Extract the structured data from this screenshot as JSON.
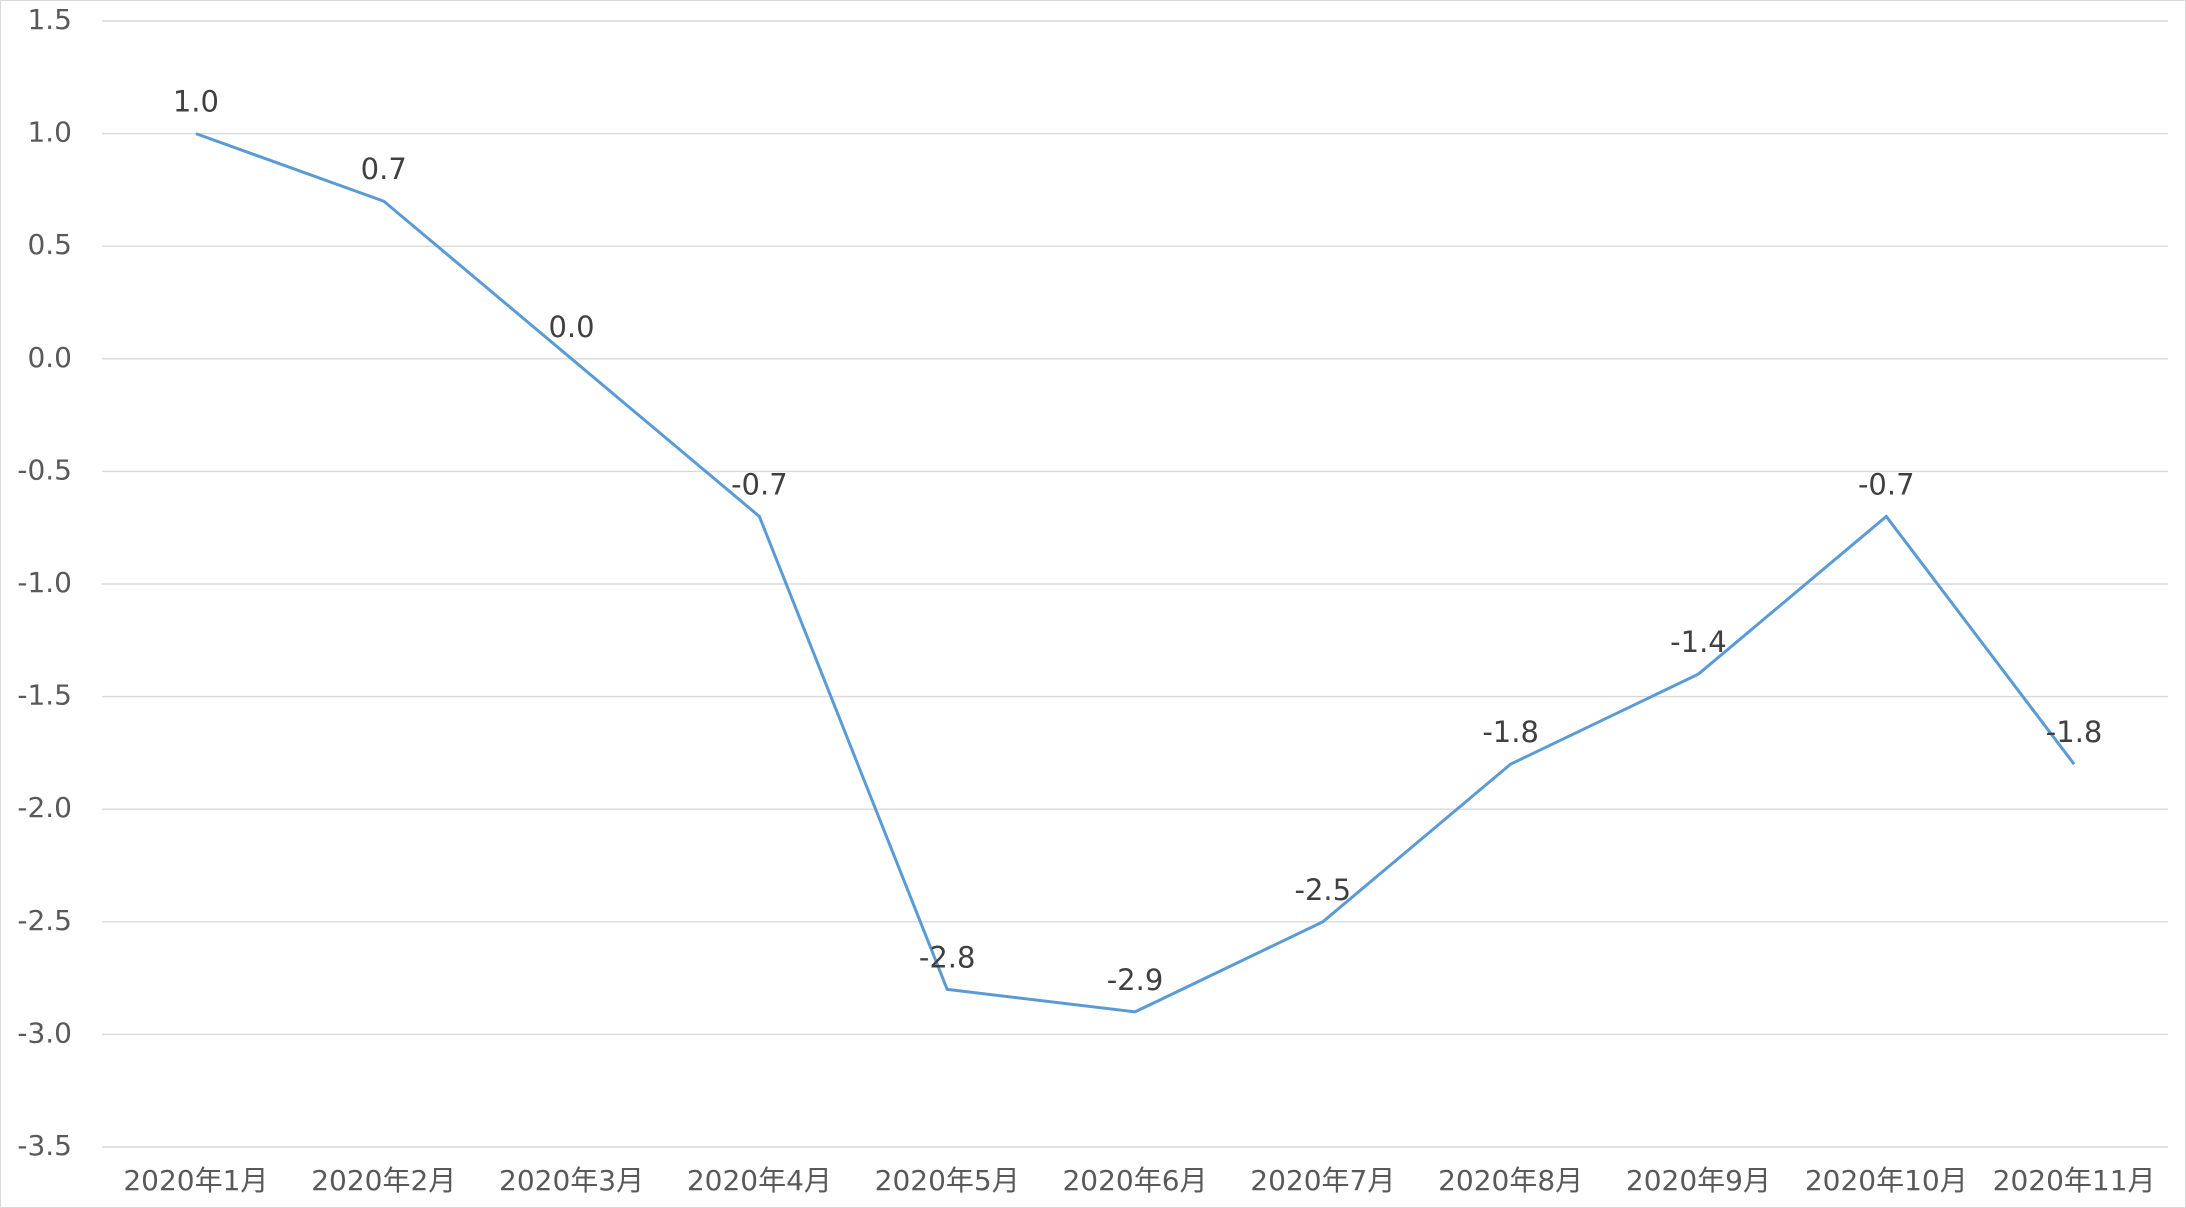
{
  "chart_data": {
    "type": "line",
    "categories": [
      "2020年1月",
      "2020年2月",
      "2020年3月",
      "2020年4月",
      "2020年5月",
      "2020年6月",
      "2020年7月",
      "2020年8月",
      "2020年9月",
      "2020年10月",
      "2020年11月"
    ],
    "series": [
      {
        "color": "#5b9bd5",
        "values": [
          1.0,
          0.7,
          0.0,
          -0.7,
          -2.8,
          -2.9,
          -2.5,
          -1.8,
          -1.4,
          -0.7,
          -1.8
        ],
        "value_labels": [
          "1.0",
          "0.7",
          "0.0",
          "-0.7",
          "-2.8",
          "-2.9",
          "-2.5",
          "-1.8",
          "-1.4",
          "-0.7",
          "-1.8"
        ]
      }
    ],
    "ylim": [
      -3.5,
      1.5
    ],
    "yticks": [
      1.5,
      {
        "value": 1,
        "label": "1.0"
      },
      0.5,
      {
        "value": 0,
        "label": "0.0"
      },
      -0.5,
      {
        "value": -1,
        "label": "-1.0"
      },
      -1.5,
      {
        "value": -2,
        "label": "-2.0"
      },
      -2.5,
      {
        "value": -3,
        "label": "-3.0"
      },
      -3.5
    ],
    "grid": true
  }
}
